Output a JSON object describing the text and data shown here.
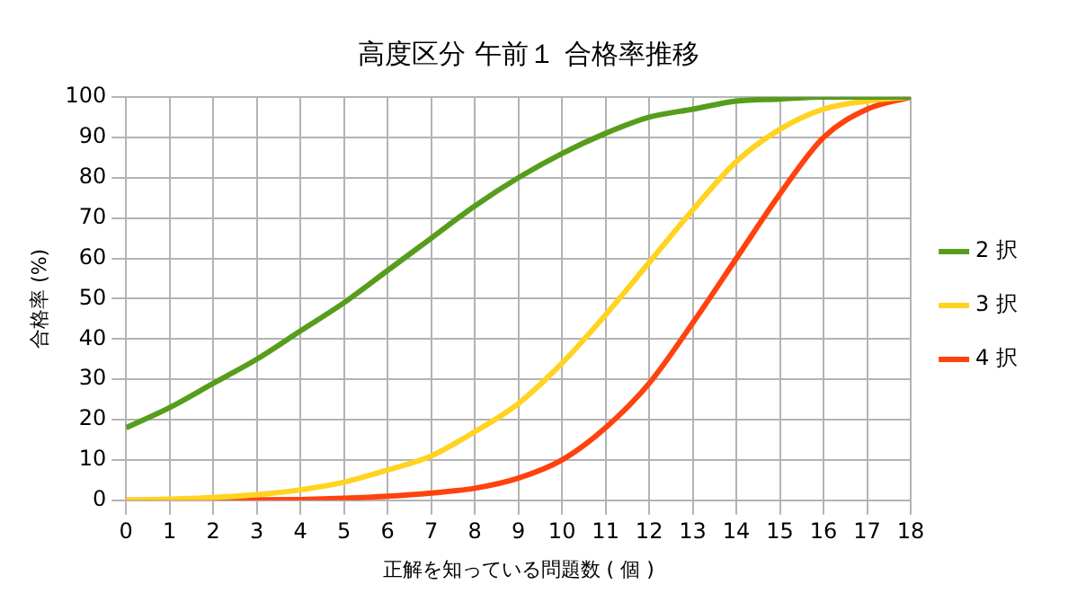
{
  "chart_data": {
    "type": "line",
    "title": "高度区分 午前１ 合格率推移",
    "xlabel": "正解を知っている問題数 ( 個 )",
    "ylabel": "合格率 (%)",
    "x": [
      0,
      1,
      2,
      3,
      4,
      5,
      6,
      7,
      8,
      9,
      10,
      11,
      12,
      13,
      14,
      15,
      16,
      17,
      18
    ],
    "series": [
      {
        "name": "2 択",
        "color": "#579d1c",
        "values": [
          18,
          23,
          29,
          35,
          42,
          49,
          57,
          65,
          73,
          80,
          86,
          91,
          95,
          97,
          99,
          99.5,
          100,
          100,
          100
        ]
      },
      {
        "name": "3 択",
        "color": "#ffd320",
        "values": [
          0,
          0.3,
          0.7,
          1.4,
          2.6,
          4.5,
          7.5,
          11,
          17,
          24,
          34,
          46,
          59,
          72,
          84,
          92,
          97,
          99,
          100
        ]
      },
      {
        "name": "4 択",
        "color": "#ff420e",
        "values": [
          0,
          0,
          0,
          0.1,
          0.2,
          0.5,
          1,
          1.8,
          3,
          5.5,
          10,
          18,
          29,
          44,
          60,
          76,
          90,
          97,
          100
        ]
      }
    ],
    "xlim": [
      0,
      18
    ],
    "xticks": [
      0,
      1,
      2,
      3,
      4,
      5,
      6,
      7,
      8,
      9,
      10,
      11,
      12,
      13,
      14,
      15,
      16,
      17,
      18
    ],
    "ylim": [
      0,
      100
    ],
    "yticks": [
      0,
      10,
      20,
      30,
      40,
      50,
      60,
      70,
      80,
      90,
      100
    ],
    "grid": true,
    "legend": "right",
    "marker": "none",
    "line_style": "solid"
  }
}
